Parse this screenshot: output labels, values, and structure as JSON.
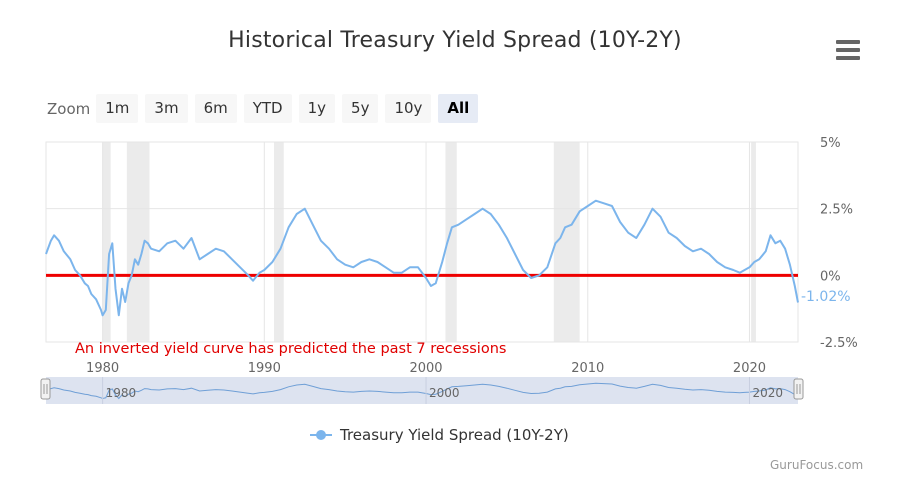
{
  "header": {
    "title": "Historical Treasury Yield Spread (10Y-2Y)"
  },
  "menu": {
    "icon": "hamburger-menu-icon"
  },
  "zoom": {
    "label": "Zoom",
    "buttons": [
      "1m",
      "3m",
      "6m",
      "YTD",
      "1y",
      "5y",
      "10y",
      "All"
    ],
    "active": "All"
  },
  "legend": {
    "label": "Treasury Yield Spread (10Y-2Y)"
  },
  "credit": "GuruFocus.com",
  "chart_data": {
    "type": "line",
    "title": "Historical Treasury Yield Spread (10Y-2Y)",
    "xlabel": "",
    "ylabel": "",
    "xlim": [
      1976.5,
      2023.0
    ],
    "ylim": [
      -2.5,
      5
    ],
    "y_ticks": [
      "5%",
      "2.5%",
      "0%",
      "-2.5%"
    ],
    "x_ticks": [
      "1980",
      "1990",
      "2000",
      "2010",
      "2020"
    ],
    "navigator_ticks": [
      "1980",
      "2000",
      "2020"
    ],
    "grid": true,
    "legend_position": "bottom",
    "reference_line": {
      "y": 0,
      "color": "#ee0000"
    },
    "annotation": "An inverted yield curve has predicted the past 7 recessions",
    "last_value_label": "-1.02%",
    "recessions": [
      [
        1980.0,
        1980.5
      ],
      [
        1981.5,
        1982.9
      ],
      [
        1990.6,
        1991.2
      ],
      [
        2001.2,
        2001.9
      ],
      [
        2007.9,
        2009.5
      ],
      [
        2020.1,
        2020.4
      ]
    ],
    "series": [
      {
        "name": "Treasury Yield Spread (10Y-2Y)",
        "color": "#7cb5ec",
        "x": [
          1976.5,
          1976.8,
          1977.0,
          1977.3,
          1977.6,
          1978.0,
          1978.3,
          1978.6,
          1978.9,
          1979.1,
          1979.3,
          1979.6,
          1979.9,
          1980.0,
          1980.2,
          1980.4,
          1980.6,
          1980.8,
          1981.0,
          1981.2,
          1981.4,
          1981.6,
          1981.8,
          1982.0,
          1982.2,
          1982.4,
          1982.6,
          1982.8,
          1983.0,
          1983.5,
          1984.0,
          1984.5,
          1985.0,
          1985.5,
          1986.0,
          1986.5,
          1987.0,
          1987.5,
          1988.0,
          1988.5,
          1989.0,
          1989.3,
          1989.7,
          1990.0,
          1990.5,
          1991.0,
          1991.5,
          1992.0,
          1992.5,
          1993.0,
          1993.5,
          1994.0,
          1994.5,
          1995.0,
          1995.5,
          1996.0,
          1996.5,
          1997.0,
          1997.5,
          1998.0,
          1998.5,
          1999.0,
          1999.5,
          2000.0,
          2000.3,
          2000.6,
          2001.0,
          2001.3,
          2001.6,
          2002.0,
          2002.5,
          2003.0,
          2003.5,
          2004.0,
          2004.5,
          2005.0,
          2005.5,
          2006.0,
          2006.5,
          2007.0,
          2007.5,
          2008.0,
          2008.3,
          2008.6,
          2009.0,
          2009.5,
          2010.0,
          2010.5,
          2011.0,
          2011.5,
          2012.0,
          2012.5,
          2013.0,
          2013.5,
          2014.0,
          2014.5,
          2015.0,
          2015.5,
          2016.0,
          2016.5,
          2017.0,
          2017.5,
          2018.0,
          2018.5,
          2019.0,
          2019.4,
          2019.7,
          2020.0,
          2020.3,
          2020.6,
          2021.0,
          2021.3,
          2021.6,
          2021.9,
          2022.2,
          2022.5,
          2022.8,
          2023.0
        ],
        "y": [
          0.8,
          1.3,
          1.5,
          1.3,
          0.9,
          0.6,
          0.2,
          0.0,
          -0.3,
          -0.4,
          -0.7,
          -0.9,
          -1.3,
          -1.5,
          -1.3,
          0.8,
          1.2,
          -0.5,
          -1.5,
          -0.5,
          -1.0,
          -0.3,
          0.0,
          0.6,
          0.4,
          0.8,
          1.3,
          1.2,
          1.0,
          0.9,
          1.2,
          1.3,
          1.0,
          1.4,
          0.6,
          0.8,
          1.0,
          0.9,
          0.6,
          0.3,
          0.0,
          -0.2,
          0.1,
          0.2,
          0.5,
          1.0,
          1.8,
          2.3,
          2.5,
          1.9,
          1.3,
          1.0,
          0.6,
          0.4,
          0.3,
          0.5,
          0.6,
          0.5,
          0.3,
          0.1,
          0.1,
          0.3,
          0.3,
          -0.1,
          -0.4,
          -0.3,
          0.5,
          1.2,
          1.8,
          1.9,
          2.1,
          2.3,
          2.5,
          2.3,
          1.9,
          1.4,
          0.8,
          0.2,
          -0.1,
          0.0,
          0.3,
          1.2,
          1.4,
          1.8,
          1.9,
          2.4,
          2.6,
          2.8,
          2.7,
          2.6,
          2.0,
          1.6,
          1.4,
          1.9,
          2.5,
          2.2,
          1.6,
          1.4,
          1.1,
          0.9,
          1.0,
          0.8,
          0.5,
          0.3,
          0.2,
          0.1,
          0.2,
          0.3,
          0.5,
          0.6,
          0.9,
          1.5,
          1.2,
          1.3,
          1.0,
          0.4,
          -0.4,
          -1.02
        ]
      }
    ]
  }
}
